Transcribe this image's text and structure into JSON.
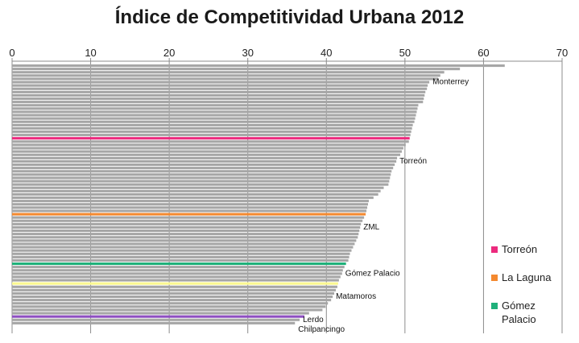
{
  "chart_data": {
    "type": "bar",
    "orientation": "horizontal",
    "title": "Índice de Competitividad Urbana 2012",
    "xlim": [
      0,
      70
    ],
    "x_ticks": [
      "0",
      "10",
      "20",
      "30",
      "40",
      "50",
      "60",
      "70"
    ],
    "grid": true,
    "axis_position": "top",
    "values": [
      62.7,
      57.0,
      55.0,
      54.5,
      54.2,
      53.1,
      52.9,
      52.8,
      52.6,
      52.5,
      52.4,
      52.3,
      51.7,
      51.6,
      51.5,
      51.4,
      51.3,
      51.2,
      51.0,
      50.9,
      50.8,
      50.7,
      50.6,
      50.5,
      50.1,
      49.8,
      49.6,
      49.4,
      49.0,
      48.9,
      48.7,
      48.5,
      48.3,
      48.2,
      48.1,
      48.0,
      47.9,
      47.3,
      46.9,
      46.6,
      46.0,
      45.4,
      45.3,
      45.2,
      45.1,
      45.0,
      44.8,
      44.6,
      44.4,
      44.3,
      44.2,
      44.1,
      44.0,
      43.8,
      43.6,
      43.4,
      43.2,
      43.0,
      42.9,
      42.8,
      42.5,
      42.3,
      42.1,
      42.0,
      41.8,
      41.6,
      41.5,
      41.4,
      41.2,
      41.0,
      40.8,
      40.6,
      40.2,
      39.9,
      39.5,
      37.8,
      37.2,
      36.6,
      36.0
    ],
    "highlights": [
      {
        "index": 22,
        "color": "#ec2a7e"
      },
      {
        "index": 45,
        "color": "#f4892f"
      },
      {
        "index": 60,
        "color": "#1fb07a"
      },
      {
        "index": 66,
        "color": "#fbf88f"
      },
      {
        "index": 76,
        "color": "#8e4fc2"
      }
    ],
    "bar_color": "#a6a6a6",
    "annotations": [
      {
        "text": "Monterrey",
        "bar": 5
      },
      {
        "text": "Torreón",
        "bar": 29
      },
      {
        "text": "ZML",
        "bar": 49
      },
      {
        "text": "Gómez Palacio",
        "bar": 63
      },
      {
        "text": "Matamoros",
        "bar": 70
      },
      {
        "text": "Lerdo",
        "bar": 77
      },
      {
        "text": "Chilpancingo",
        "bar": 80
      }
    ],
    "legend_placement": "right",
    "legend": [
      {
        "name": "Torreón",
        "color": "#ec2a7e"
      },
      {
        "name": "La Laguna",
        "color": "#f4892f"
      },
      {
        "name": "Gómez\nPalacio",
        "color": "#1fb07a"
      }
    ]
  }
}
